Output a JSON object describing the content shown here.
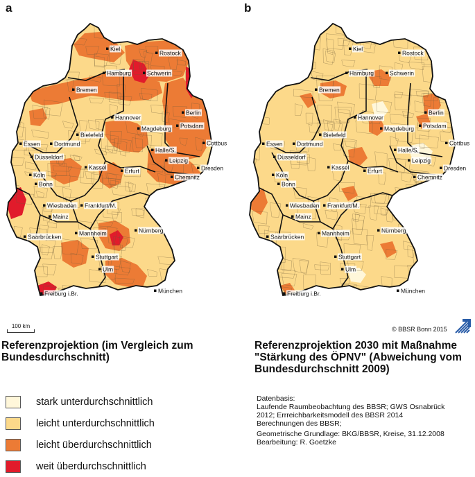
{
  "panels": [
    {
      "letter": "a",
      "title": "Referenzprojektion (im Vergleich zum Bundesdurchschnitt)"
    },
    {
      "letter": "b",
      "title": "Referenzprojektion 2030 mit Maßnahme \"Stärkung des ÖPNV\" (Abweichung vom Bundesdurchschnitt 2009)"
    }
  ],
  "legend": [
    {
      "label": "stark unterdurchschnittlich",
      "color": "#fff7da"
    },
    {
      "label": "leicht unterdurchschnittlich",
      "color": "#fcd98a"
    },
    {
      "label": "leicht überdurchschnittlich",
      "color": "#ec7b35"
    },
    {
      "label": "weit überdurchschnittlich",
      "color": "#e11b2b"
    }
  ],
  "cities": [
    "Kiel",
    "Rostock",
    "Hamburg",
    "Schwerin",
    "Bremen",
    "Berlin",
    "Hannover",
    "Potsdam",
    "Magdeburg",
    "Bielefeld",
    "Cottbus",
    "Essen",
    "Dortmund",
    "Halle/S.",
    "Düsseldorf",
    "Leipzig",
    "Dresden",
    "Kassel",
    "Köln",
    "Erfurt",
    "Bonn",
    "Chemnitz",
    "Wiesbaden",
    "Frankfurt/M.",
    "Mainz",
    "Nürnberg",
    "Mannheim",
    "Saarbrücken",
    "Stuttgart",
    "Ulm",
    "München",
    "Freiburg i.Br."
  ],
  "scalebar": "100 km",
  "copyright": "© BBSR Bonn 2015",
  "metadata": {
    "datenbasis": "Datenbasis:\nLaufende Raumbeobachtung des BBSR; GWS Osnabrück 2012; Errreichbarkeitsmodell des BBSR 2014\nBerechnungen des BBSR;",
    "grundlage": "Geometrische Grundlage: BKG/BBSR, Kreise, 31.12.2008\nBearbeitung: R. Goetzke"
  }
}
